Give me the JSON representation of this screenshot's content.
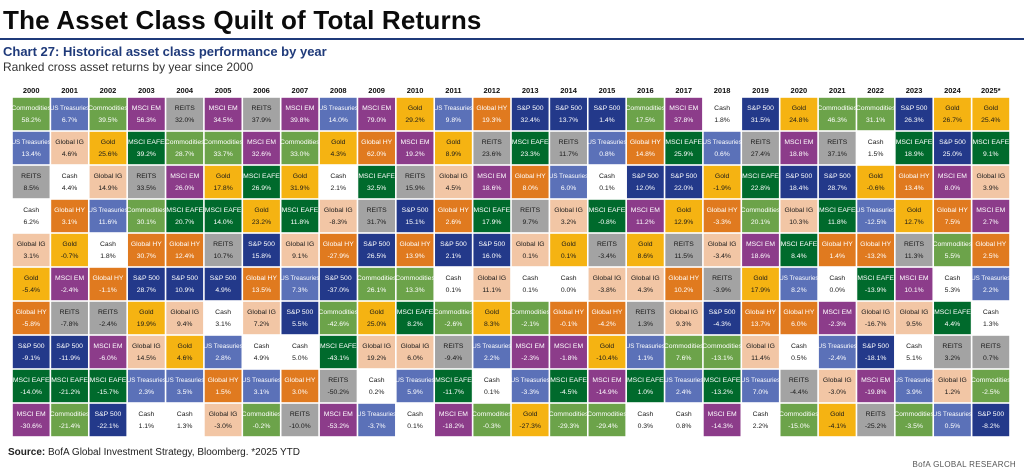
{
  "header": {
    "title": "The Asset Class Quilt of Total Returns",
    "chart_title": "Chart 27: Historical asset class performance by year",
    "chart_subtitle": "Ranked cross asset returns by year since 2000"
  },
  "footer": {
    "source_label": "Source:",
    "source_text": "BofA Global Investment Strategy, Bloomberg. *2025 YTD",
    "brand": "BofA GLOBAL RESEARCH"
  },
  "colors": {
    "Commodities": "#6ca34a",
    "US Treasuries": "#5b71b8",
    "MSCI EM": "#8c3c8a",
    "REITS": "#a3a3a3",
    "Gold": "#f5b312",
    "Cash": "#ffffff",
    "Global HY": "#e07a1f",
    "S&P 500": "#23398a",
    "Global IG": "#f2c6a5",
    "MSCI EAFE": "#006a2c"
  },
  "chart_data": {
    "type": "table",
    "title": "Chart 27: Historical asset class performance by year",
    "years": [
      "2000",
      "2001",
      "2002",
      "2003",
      "2004",
      "2005",
      "2006",
      "2007",
      "2008",
      "2009",
      "2010",
      "2011",
      "2012",
      "2013",
      "2014",
      "2015",
      "2016",
      "2017",
      "2018",
      "2019",
      "2020",
      "2021",
      "2022",
      "2023",
      "2024",
      "2025*"
    ],
    "columns": [
      [
        [
          "Commodities",
          "58.2%"
        ],
        [
          "US Treasuries",
          "13.4%"
        ],
        [
          "REITS",
          "8.5%"
        ],
        [
          "Cash",
          "6.2%"
        ],
        [
          "Global IG",
          "3.1%"
        ],
        [
          "Gold",
          "-5.4%"
        ],
        [
          "Global HY",
          "-5.8%"
        ],
        [
          "S&P 500",
          "-9.1%"
        ],
        [
          "MSCI EAFE",
          "-14.0%"
        ],
        [
          "MSCI EM",
          "-30.6%"
        ]
      ],
      [
        [
          "US Treasuries",
          "6.7%"
        ],
        [
          "Global IG",
          "4.6%"
        ],
        [
          "Cash",
          "4.4%"
        ],
        [
          "Global HY",
          "3.1%"
        ],
        [
          "Gold",
          "-0.7%"
        ],
        [
          "MSCI EM",
          "-2.4%"
        ],
        [
          "REITS",
          "-7.8%"
        ],
        [
          "S&P 500",
          "-11.9%"
        ],
        [
          "MSCI EAFE",
          "-21.2%"
        ],
        [
          "Commodities",
          "-21.4%"
        ]
      ],
      [
        [
          "Commodities",
          "39.5%"
        ],
        [
          "Gold",
          "25.6%"
        ],
        [
          "Global IG",
          "14.9%"
        ],
        [
          "US Treasuries",
          "11.6%"
        ],
        [
          "Cash",
          "1.8%"
        ],
        [
          "Global HY",
          "-1.1%"
        ],
        [
          "REITS",
          "-2.4%"
        ],
        [
          "MSCI EM",
          "-6.0%"
        ],
        [
          "MSCI EAFE",
          "-15.7%"
        ],
        [
          "S&P 500",
          "-22.1%"
        ]
      ],
      [
        [
          "MSCI EM",
          "56.3%"
        ],
        [
          "MSCI EAFE",
          "39.2%"
        ],
        [
          "REITS",
          "33.5%"
        ],
        [
          "Commodities",
          "30.1%"
        ],
        [
          "Global HY",
          "30.7%"
        ],
        [
          "S&P 500",
          "28.7%"
        ],
        [
          "Gold",
          "19.9%"
        ],
        [
          "Global IG",
          "14.5%"
        ],
        [
          "US Treasuries",
          "2.3%"
        ],
        [
          "Cash",
          "1.1%"
        ]
      ],
      [
        [
          "REITS",
          "32.0%"
        ],
        [
          "Commodities",
          "28.7%"
        ],
        [
          "MSCI EM",
          "26.0%"
        ],
        [
          "MSCI EAFE",
          "20.7%"
        ],
        [
          "Global HY",
          "12.4%"
        ],
        [
          "S&P 500",
          "10.9%"
        ],
        [
          "Global IG",
          "9.4%"
        ],
        [
          "Gold",
          "4.6%"
        ],
        [
          "US Treasuries",
          "3.5%"
        ],
        [
          "Cash",
          "1.3%"
        ]
      ],
      [
        [
          "MSCI EM",
          "34.5%"
        ],
        [
          "Commodities",
          "33.7%"
        ],
        [
          "Gold",
          "17.8%"
        ],
        [
          "MSCI EAFE",
          "14.0%"
        ],
        [
          "REITS",
          "10.7%"
        ],
        [
          "S&P 500",
          "4.9%"
        ],
        [
          "Cash",
          "3.1%"
        ],
        [
          "US Treasuries",
          "2.8%"
        ],
        [
          "Global HY",
          "1.5%"
        ],
        [
          "Global IG",
          "-3.0%"
        ]
      ],
      [
        [
          "REITS",
          "37.9%"
        ],
        [
          "MSCI EM",
          "32.6%"
        ],
        [
          "MSCI EAFE",
          "26.9%"
        ],
        [
          "Gold",
          "23.2%"
        ],
        [
          "S&P 500",
          "15.8%"
        ],
        [
          "Global HY",
          "13.5%"
        ],
        [
          "Global IG",
          "7.2%"
        ],
        [
          "Cash",
          "4.9%"
        ],
        [
          "US Treasuries",
          "3.1%"
        ],
        [
          "Commodities",
          "-0.2%"
        ]
      ],
      [
        [
          "MSCI EM",
          "39.8%"
        ],
        [
          "Commodities",
          "33.0%"
        ],
        [
          "Gold",
          "31.9%"
        ],
        [
          "MSCI EAFE",
          "11.8%"
        ],
        [
          "Global IG",
          "9.1%"
        ],
        [
          "US Treasuries",
          "7.3%"
        ],
        [
          "S&P 500",
          "5.5%"
        ],
        [
          "Cash",
          "5.0%"
        ],
        [
          "Global HY",
          "3.0%"
        ],
        [
          "REITS",
          "-10.0%"
        ]
      ],
      [
        [
          "US Treasuries",
          "14.0%"
        ],
        [
          "Gold",
          "4.3%"
        ],
        [
          "Cash",
          "2.1%"
        ],
        [
          "Global IG",
          "-8.3%"
        ],
        [
          "Global HY",
          "-27.9%"
        ],
        [
          "S&P 500",
          "-37.0%"
        ],
        [
          "Commodities",
          "-42.6%"
        ],
        [
          "MSCI EAFE",
          "-43.1%"
        ],
        [
          "REITS",
          "-50.2%"
        ],
        [
          "MSCI EM",
          "-53.2%"
        ]
      ],
      [
        [
          "MSCI EM",
          "79.0%"
        ],
        [
          "Global HY",
          "62.0%"
        ],
        [
          "MSCI EAFE",
          "32.5%"
        ],
        [
          "REITS",
          "31.7%"
        ],
        [
          "S&P 500",
          "26.5%"
        ],
        [
          "Commodities",
          "26.1%"
        ],
        [
          "Gold",
          "25.0%"
        ],
        [
          "Global IG",
          "19.2%"
        ],
        [
          "Cash",
          "0.2%"
        ],
        [
          "US Treasuries",
          "-3.7%"
        ]
      ],
      [
        [
          "Gold",
          "29.2%"
        ],
        [
          "MSCI EM",
          "19.2%"
        ],
        [
          "REITS",
          "15.9%"
        ],
        [
          "S&P 500",
          "15.1%"
        ],
        [
          "Global HY",
          "13.9%"
        ],
        [
          "Commodities",
          "13.3%"
        ],
        [
          "MSCI EAFE",
          "8.2%"
        ],
        [
          "Global IG",
          "6.0%"
        ],
        [
          "US Treasuries",
          "5.9%"
        ],
        [
          "Cash",
          "0.1%"
        ]
      ],
      [
        [
          "US Treasuries",
          "9.8%"
        ],
        [
          "Gold",
          "8.9%"
        ],
        [
          "Global IG",
          "4.5%"
        ],
        [
          "Global HY",
          "2.6%"
        ],
        [
          "S&P 500",
          "2.1%"
        ],
        [
          "Cash",
          "0.1%"
        ],
        [
          "Commodities",
          "-2.6%"
        ],
        [
          "REITS",
          "-9.4%"
        ],
        [
          "MSCI EAFE",
          "-11.7%"
        ],
        [
          "MSCI EM",
          "-18.2%"
        ]
      ],
      [
        [
          "Global HY",
          "19.3%"
        ],
        [
          "REITS",
          "23.6%"
        ],
        [
          "MSCI EM",
          "18.6%"
        ],
        [
          "MSCI EAFE",
          "17.9%"
        ],
        [
          "S&P 500",
          "16.0%"
        ],
        [
          "Global IG",
          "11.1%"
        ],
        [
          "Gold",
          "8.3%"
        ],
        [
          "US Treasuries",
          "2.2%"
        ],
        [
          "Cash",
          "0.1%"
        ],
        [
          "Commodities",
          "-0.3%"
        ]
      ],
      [
        [
          "S&P 500",
          "32.4%"
        ],
        [
          "MSCI EAFE",
          "23.3%"
        ],
        [
          "Global HY",
          "8.0%"
        ],
        [
          "REITS",
          "9.7%"
        ],
        [
          "Global IG",
          "0.1%"
        ],
        [
          "Cash",
          "0.1%"
        ],
        [
          "Commodities",
          "-2.1%"
        ],
        [
          "MSCI EM",
          "-2.3%"
        ],
        [
          "US Treasuries",
          "-3.3%"
        ],
        [
          "Gold",
          "-27.3%"
        ]
      ],
      [
        [
          "S&P 500",
          "13.7%"
        ],
        [
          "REITS",
          "11.7%"
        ],
        [
          "US Treasuries",
          "6.0%"
        ],
        [
          "Global IG",
          "3.2%"
        ],
        [
          "Gold",
          "0.1%"
        ],
        [
          "Cash",
          "0.0%"
        ],
        [
          "Global HY",
          "-0.1%"
        ],
        [
          "MSCI EM",
          "-1.8%"
        ],
        [
          "MSCI EAFE",
          "-4.5%"
        ],
        [
          "Commodities",
          "-29.3%"
        ]
      ],
      [
        [
          "S&P 500",
          "1.4%"
        ],
        [
          "US Treasuries",
          "0.8%"
        ],
        [
          "Cash",
          "0.1%"
        ],
        [
          "MSCI EAFE",
          "-0.8%"
        ],
        [
          "REITS",
          "-3.4%"
        ],
        [
          "Global IG",
          "-3.8%"
        ],
        [
          "Global HY",
          "-4.2%"
        ],
        [
          "Gold",
          "-10.4%"
        ],
        [
          "MSCI EM",
          "-14.9%"
        ],
        [
          "Commodities",
          "-29.4%"
        ]
      ],
      [
        [
          "Commodities",
          "17.5%"
        ],
        [
          "Global HY",
          "14.8%"
        ],
        [
          "S&P 500",
          "12.0%"
        ],
        [
          "MSCI EM",
          "11.2%"
        ],
        [
          "Gold",
          "8.6%"
        ],
        [
          "Global IG",
          "4.3%"
        ],
        [
          "REITS",
          "1.3%"
        ],
        [
          "US Treasuries",
          "1.1%"
        ],
        [
          "MSCI EAFE",
          "1.0%"
        ],
        [
          "Cash",
          "0.3%"
        ]
      ],
      [
        [
          "MSCI EM",
          "37.8%"
        ],
        [
          "MSCI EAFE",
          "25.9%"
        ],
        [
          "S&P 500",
          "22.0%"
        ],
        [
          "Gold",
          "12.9%"
        ],
        [
          "REITS",
          "11.5%"
        ],
        [
          "Global HY",
          "10.2%"
        ],
        [
          "Global IG",
          "9.3%"
        ],
        [
          "Commodities",
          "7.6%"
        ],
        [
          "US Treasuries",
          "2.4%"
        ],
        [
          "Cash",
          "0.8%"
        ]
      ],
      [
        [
          "Cash",
          "1.8%"
        ],
        [
          "US Treasuries",
          "0.6%"
        ],
        [
          "Gold",
          "-1.9%"
        ],
        [
          "Global HY",
          "-3.3%"
        ],
        [
          "Global IG",
          "-3.4%"
        ],
        [
          "REITS",
          "-3.9%"
        ],
        [
          "S&P 500",
          "-4.3%"
        ],
        [
          "Commodities",
          "-13.1%"
        ],
        [
          "MSCI EAFE",
          "-13.2%"
        ],
        [
          "MSCI EM",
          "-14.3%"
        ]
      ],
      [
        [
          "S&P 500",
          "31.5%"
        ],
        [
          "REITS",
          "27.4%"
        ],
        [
          "MSCI EAFE",
          "22.8%"
        ],
        [
          "Commodities",
          "20.1%"
        ],
        [
          "MSCI EM",
          "18.6%"
        ],
        [
          "Gold",
          "17.9%"
        ],
        [
          "Global HY",
          "13.7%"
        ],
        [
          "Global IG",
          "11.4%"
        ],
        [
          "US Treasuries",
          "7.0%"
        ],
        [
          "Cash",
          "2.2%"
        ]
      ],
      [
        [
          "Gold",
          "24.8%"
        ],
        [
          "MSCI EM",
          "18.8%"
        ],
        [
          "S&P 500",
          "18.4%"
        ],
        [
          "Global IG",
          "10.3%"
        ],
        [
          "MSCI EAFE",
          "8.4%"
        ],
        [
          "US Treasuries",
          "8.2%"
        ],
        [
          "Global HY",
          "6.0%"
        ],
        [
          "Cash",
          "0.5%"
        ],
        [
          "REITS",
          "-4.4%"
        ],
        [
          "Commodities",
          "-15.0%"
        ]
      ],
      [
        [
          "Commodities",
          "46.3%"
        ],
        [
          "REITS",
          "37.1%"
        ],
        [
          "S&P 500",
          "28.7%"
        ],
        [
          "MSCI EAFE",
          "11.8%"
        ],
        [
          "Global HY",
          "1.4%"
        ],
        [
          "Cash",
          "0.0%"
        ],
        [
          "MSCI EM",
          "-2.3%"
        ],
        [
          "US Treasuries",
          "-2.4%"
        ],
        [
          "Global IG",
          "-3.0%"
        ],
        [
          "Gold",
          "-4.1%"
        ]
      ],
      [
        [
          "Commodities",
          "31.1%"
        ],
        [
          "Cash",
          "1.5%"
        ],
        [
          "Gold",
          "-0.6%"
        ],
        [
          "US Treasuries",
          "-12.5%"
        ],
        [
          "Global HY",
          "-13.2%"
        ],
        [
          "MSCI EAFE",
          "-13.9%"
        ],
        [
          "Global IG",
          "-16.7%"
        ],
        [
          "S&P 500",
          "-18.1%"
        ],
        [
          "MSCI EM",
          "-19.8%"
        ],
        [
          "REITS",
          "-25.2%"
        ]
      ],
      [
        [
          "S&P 500",
          "26.3%"
        ],
        [
          "MSCI EAFE",
          "18.9%"
        ],
        [
          "Global HY",
          "13.4%"
        ],
        [
          "Gold",
          "12.7%"
        ],
        [
          "REITS",
          "11.3%"
        ],
        [
          "MSCI EM",
          "10.1%"
        ],
        [
          "Global IG",
          "9.5%"
        ],
        [
          "Cash",
          "5.1%"
        ],
        [
          "US Treasuries",
          "3.9%"
        ],
        [
          "Commodities",
          "-3.5%"
        ]
      ],
      [
        [
          "Gold",
          "26.7%"
        ],
        [
          "S&P 500",
          "25.0%"
        ],
        [
          "MSCI EM",
          "8.0%"
        ],
        [
          "Global HY",
          "7.5%"
        ],
        [
          "Commodities",
          "5.5%"
        ],
        [
          "Cash",
          "5.3%"
        ],
        [
          "MSCI EAFE",
          "4.4%"
        ],
        [
          "REITS",
          "3.2%"
        ],
        [
          "Global IG",
          "1.2%"
        ],
        [
          "US Treasuries",
          "0.5%"
        ]
      ],
      [
        [
          "Gold",
          "25.4%"
        ],
        [
          "MSCI EAFE",
          "9.1%"
        ],
        [
          "Global IG",
          "3.9%"
        ],
        [
          "MSCI EM",
          "2.7%"
        ],
        [
          "Global HY",
          "2.5%"
        ],
        [
          "US Treasuries",
          "2.2%"
        ],
        [
          "Cash",
          "1.3%"
        ],
        [
          "REITS",
          "0.7%"
        ],
        [
          "Commodities",
          "-2.5%"
        ],
        [
          "S&P 500",
          "-8.2%"
        ]
      ]
    ]
  }
}
